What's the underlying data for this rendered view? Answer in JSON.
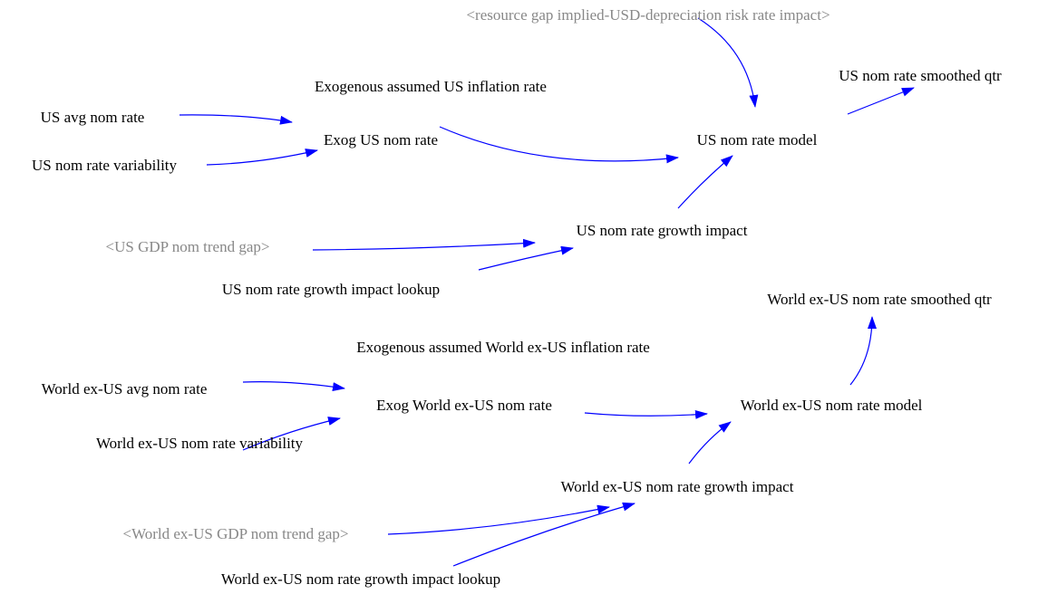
{
  "nodes": [
    {
      "label": "<resource gap implied-USD-depreciation risk rate impact>",
      "color": "#888888"
    },
    {
      "label": "Exogenous assumed US inflation rate",
      "color": "#000000"
    },
    {
      "label": "US nom rate smoothed qtr",
      "color": "#000000"
    },
    {
      "label": "US avg nom rate",
      "color": "#000000"
    },
    {
      "label": "Exog US nom rate",
      "color": "#000000"
    },
    {
      "label": "US nom rate model",
      "color": "#000000"
    },
    {
      "label": "US nom rate variability",
      "color": "#000000"
    },
    {
      "label": "US nom rate growth impact",
      "color": "#000000"
    },
    {
      "label": "<US GDP nom trend gap>",
      "color": "#888888"
    },
    {
      "label": "US nom rate growth impact lookup",
      "color": "#000000"
    },
    {
      "label": "World ex-US nom rate smoothed qtr",
      "color": "#000000"
    },
    {
      "label": "Exogenous assumed World ex-US inflation rate",
      "color": "#000000"
    },
    {
      "label": "World ex-US avg nom rate",
      "color": "#000000"
    },
    {
      "label": "Exog World ex-US nom rate",
      "color": "#000000"
    },
    {
      "label": "World ex-US nom rate model",
      "color": "#000000"
    },
    {
      "label": "World ex-US nom rate variability",
      "color": "#000000"
    },
    {
      "label": "World ex-US nom rate growth impact",
      "color": "#000000"
    },
    {
      "label": "<World ex-US GDP nom trend gap>",
      "color": "#888888"
    },
    {
      "label": "World ex-US nom rate growth impact lookup",
      "color": "#000000"
    }
  ]
}
